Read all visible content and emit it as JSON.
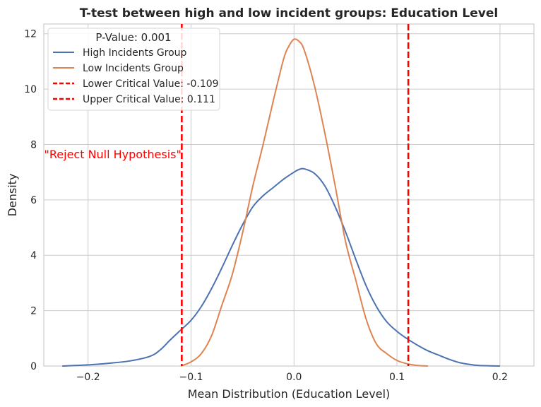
{
  "chart_data": {
    "type": "line",
    "title": "T-test between high and low incident groups: Education Level",
    "xlabel": "Mean Distribution (Education Level)",
    "ylabel": "Density",
    "xlim": [
      -0.243,
      0.233
    ],
    "ylim": [
      0,
      12.35
    ],
    "xticks": [
      -0.2,
      -0.1,
      0.0,
      0.1,
      0.2
    ],
    "xtick_labels": [
      "−0.2",
      "−0.1",
      "0.0",
      "0.1",
      "0.2"
    ],
    "yticks": [
      0,
      2,
      4,
      6,
      8,
      10,
      12
    ],
    "ytick_labels": [
      "0",
      "2",
      "4",
      "6",
      "8",
      "10",
      "12"
    ],
    "grid": true,
    "legend_position": "top-left",
    "legend_title": "P-Value: 0.001",
    "series": [
      {
        "name": "High Incidents Group",
        "color": "#4c72b0",
        "style": "solid",
        "x": [
          -0.225,
          -0.2,
          -0.18,
          -0.16,
          -0.14,
          -0.13,
          -0.12,
          -0.11,
          -0.1,
          -0.09,
          -0.08,
          -0.07,
          -0.06,
          -0.05,
          -0.04,
          -0.03,
          -0.02,
          -0.01,
          0.0,
          0.005,
          0.01,
          0.02,
          0.03,
          0.04,
          0.05,
          0.06,
          0.07,
          0.08,
          0.09,
          0.1,
          0.11,
          0.12,
          0.13,
          0.14,
          0.15,
          0.16,
          0.17,
          0.18,
          0.2
        ],
        "y": [
          0.0,
          0.04,
          0.1,
          0.18,
          0.35,
          0.58,
          0.95,
          1.3,
          1.65,
          2.15,
          2.8,
          3.55,
          4.35,
          5.1,
          5.75,
          6.15,
          6.45,
          6.75,
          7.0,
          7.1,
          7.12,
          6.95,
          6.5,
          5.75,
          4.85,
          3.85,
          2.9,
          2.15,
          1.6,
          1.25,
          0.98,
          0.75,
          0.55,
          0.4,
          0.25,
          0.13,
          0.06,
          0.02,
          0.0
        ]
      },
      {
        "name": "Low Incidents Group",
        "color": "#dd8452",
        "style": "solid",
        "x": [
          -0.11,
          -0.1,
          -0.09,
          -0.08,
          -0.07,
          -0.06,
          -0.05,
          -0.04,
          -0.03,
          -0.02,
          -0.01,
          -0.005,
          0.0,
          0.005,
          0.01,
          0.02,
          0.03,
          0.04,
          0.05,
          0.06,
          0.07,
          0.08,
          0.09,
          0.1,
          0.11,
          0.12,
          0.13
        ],
        "y": [
          0.0,
          0.15,
          0.45,
          1.1,
          2.2,
          3.3,
          4.8,
          6.5,
          8.0,
          9.6,
          11.1,
          11.55,
          11.8,
          11.72,
          11.4,
          10.1,
          8.4,
          6.5,
          4.5,
          3.1,
          1.7,
          0.8,
          0.45,
          0.2,
          0.08,
          0.02,
          0.0
        ]
      }
    ],
    "critical_lines": [
      {
        "name": "Lower Critical Value: -0.109",
        "x": -0.109,
        "color": "#ff0000",
        "style": "dashed"
      },
      {
        "name": "Upper Critical Value: 0.111",
        "x": 0.111,
        "color": "#ff0000",
        "style": "dashed"
      }
    ],
    "annotations": [
      {
        "text": "\"Reject Null Hypothesis\"",
        "x": -0.176,
        "y": 7.5,
        "color": "#ff0000"
      }
    ]
  }
}
